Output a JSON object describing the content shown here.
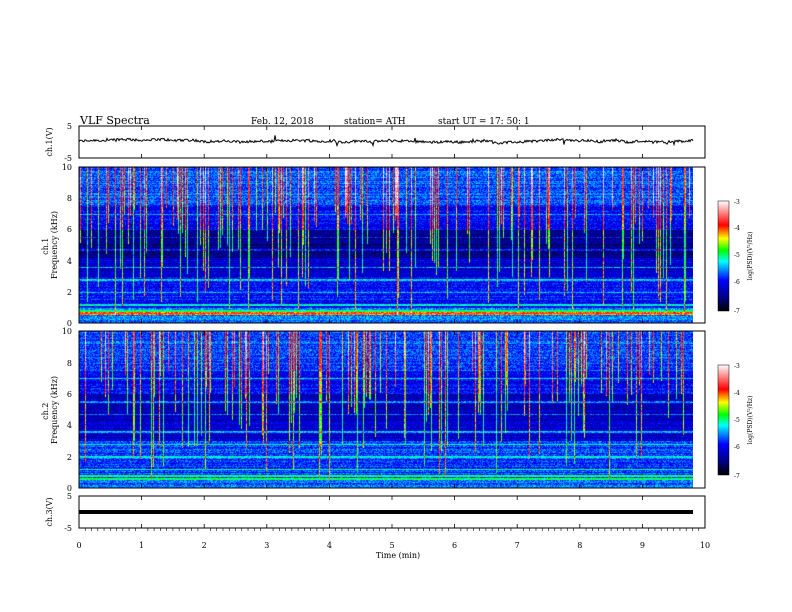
{
  "header": {
    "title": "VLF  Spectra",
    "date": "Feb. 12, 2018",
    "station": "station= ATH",
    "start_ut": "start  UT  =    17: 50: 1"
  },
  "chart_data": [
    {
      "type": "line",
      "name": "ch1-voltage",
      "ylabel": "ch.1(V)",
      "ylim": [
        -5,
        5
      ],
      "yticks": [
        "5",
        "-5"
      ],
      "baseline_v": 0.2
    },
    {
      "type": "heatmap",
      "name": "ch1-spectrogram",
      "ylabel": "ch.1\nFrequency  (kHz)",
      "ylim": [
        0,
        10
      ],
      "yticks": [
        "0",
        "2",
        "4",
        "6",
        "8",
        "10"
      ],
      "xlim": [
        0,
        10
      ],
      "data_end_min": 9.8
    },
    {
      "type": "heatmap",
      "name": "ch2-spectrogram",
      "ylabel": "ch.2\nFrequency  (kHz)",
      "ylim": [
        0,
        10
      ],
      "yticks": [
        "0",
        "2",
        "4",
        "6",
        "8",
        "10"
      ],
      "xlim": [
        0,
        10
      ],
      "data_end_min": 9.8
    },
    {
      "type": "line",
      "name": "ch3-voltage",
      "ylabel": "ch.3(V)",
      "ylim": [
        -5,
        5
      ],
      "yticks": [
        "5",
        "-5"
      ],
      "baseline_v": -1.2
    }
  ],
  "xaxis": {
    "label": "Time  (min)",
    "range": [
      0,
      10
    ],
    "ticks": [
      "0",
      "1",
      "2",
      "3",
      "4",
      "5",
      "6",
      "7",
      "8",
      "9",
      "10"
    ]
  },
  "colorbar": {
    "label": "log(PSD)(V²/Hz)",
    "range": [
      -7,
      -3
    ],
    "ticks": [
      "-3",
      "-4",
      "-5",
      "-6",
      "-7"
    ],
    "colors": [
      "#000000",
      "#000080",
      "#0000ff",
      "#00ffff",
      "#00ff00",
      "#ffff00",
      "#ff0000",
      "#ffffff"
    ]
  }
}
